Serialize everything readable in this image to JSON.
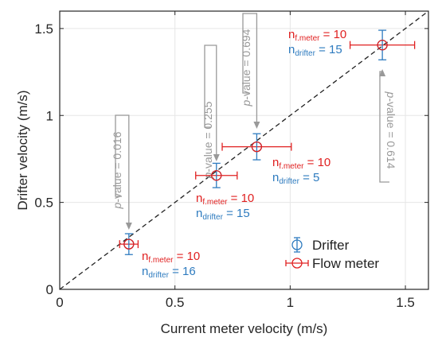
{
  "chart_data": {
    "type": "scatter",
    "xlabel": "Current meter velocity (m/s)",
    "ylabel": "Drifter velocity (m/s)",
    "xlim": [
      0,
      1.6
    ],
    "ylim": [
      0,
      1.6
    ],
    "x_ticks": [
      0,
      0.5,
      1,
      1.5
    ],
    "x_tick_labels": [
      "0",
      "0.5",
      "1",
      "1.5"
    ],
    "y_ticks": [
      0,
      0.5,
      1,
      1.5
    ],
    "y_tick_labels": [
      "0",
      "0.5",
      "1",
      "1.5"
    ],
    "grid": true,
    "reference_line": {
      "style": "dashed",
      "x": [
        0,
        1.6
      ],
      "y": [
        0,
        1.6
      ]
    },
    "points": [
      {
        "x": 0.3,
        "y": 0.26,
        "x_err": 0.04,
        "y_err": 0.06
      },
      {
        "x": 0.68,
        "y": 0.655,
        "x_err": 0.09,
        "y_err": 0.07
      },
      {
        "x": 0.855,
        "y": 0.82,
        "x_err": 0.15,
        "y_err": 0.075
      },
      {
        "x": 1.4,
        "y": 1.405,
        "x_err": 0.14,
        "y_err": 0.085
      }
    ],
    "series": [
      {
        "name": "Drifter",
        "color": "#2e7bbf",
        "error_direction": "vertical"
      },
      {
        "name": "Flow meter",
        "color": "#e02020",
        "error_direction": "horizontal"
      }
    ],
    "legend": {
      "position": "bottom-right"
    },
    "annotations": [
      {
        "pvalue_text": "p-value = 0.016",
        "p": "p",
        "rest": "-value = 0.016",
        "arrow_target": 0
      },
      {
        "pvalue_text": "p-value = 0.255",
        "p": "p",
        "rest": "-value = 0.255",
        "arrow_target": 1
      },
      {
        "pvalue_text": "p-value = 0.694",
        "p": "p",
        "rest": "-value = 0.694",
        "arrow_target": 2
      },
      {
        "pvalue_text": "p-value = 0.614",
        "p": "p",
        "rest": "-value = 0.614",
        "arrow_target": 3
      }
    ],
    "count_labels": [
      {
        "n_main": "n",
        "fmeter_sub": "f.meter",
        "fmeter_val": " = 10",
        "drifter_sub": "drifter",
        "drifter_val": " = 16"
      },
      {
        "n_main": "n",
        "fmeter_sub": "f.meter",
        "fmeter_val": " = 10",
        "drifter_sub": "drifter",
        "drifter_val": " = 15"
      },
      {
        "n_main": "n",
        "fmeter_sub": "f.meter",
        "fmeter_val": " = 10",
        "drifter_sub": "drifter",
        "drifter_val": " = 5"
      },
      {
        "n_main": "n",
        "fmeter_sub": "f.meter",
        "fmeter_val": " = 10",
        "drifter_sub": "drifter",
        "drifter_val": " = 15"
      }
    ],
    "colors": {
      "axis": "#262626",
      "grid": "#e6e6e6",
      "annotation": "#999999",
      "dashed_line": "#222222"
    }
  }
}
